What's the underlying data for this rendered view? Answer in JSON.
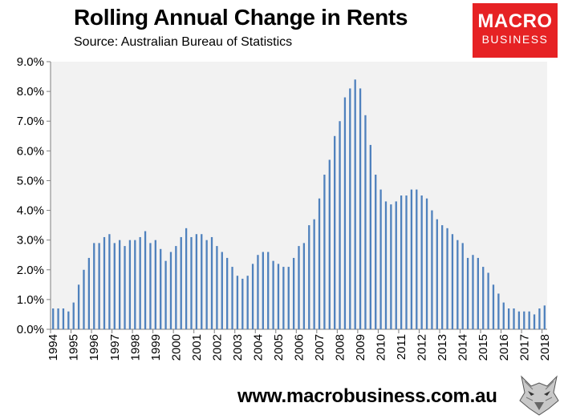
{
  "header": {
    "title": "Rolling Annual Change in Rents",
    "subtitle": "Source: Australian Bureau of Statistics"
  },
  "logo": {
    "line1": "MACRO",
    "line2": "BUSINESS"
  },
  "footer": {
    "url": "www.macrobusiness.com.au"
  },
  "colors": {
    "bar": "#4f81bd",
    "plot_bg": "#f2f2f2",
    "logo_bg": "#e62224"
  },
  "chart_data": {
    "type": "bar",
    "title": "Rolling Annual Change in Rents",
    "subtitle": "Source: Australian Bureau of Statistics",
    "xlabel": "",
    "ylabel": "",
    "ylim": [
      0,
      9.0
    ],
    "y_ticks": [
      "0.0%",
      "1.0%",
      "2.0%",
      "3.0%",
      "4.0%",
      "5.0%",
      "6.0%",
      "7.0%",
      "8.0%",
      "9.0%"
    ],
    "x_tick_labels": [
      "1994",
      "1995",
      "1996",
      "1997",
      "1998",
      "1999",
      "2000",
      "2001",
      "2002",
      "2003",
      "2004",
      "2005",
      "2006",
      "2007",
      "2008",
      "2009",
      "2010",
      "2011",
      "2012",
      "2013",
      "2014",
      "2015",
      "2016",
      "2017",
      "2018"
    ],
    "grid": false,
    "frequency": "quarterly",
    "start": "1994",
    "values": [
      0.7,
      0.7,
      0.7,
      0.6,
      0.9,
      1.5,
      2.0,
      2.4,
      2.9,
      2.9,
      3.1,
      3.2,
      2.9,
      3.0,
      2.8,
      3.0,
      3.0,
      3.1,
      3.3,
      2.9,
      3.0,
      2.7,
      2.3,
      2.6,
      2.8,
      3.1,
      3.4,
      3.1,
      3.2,
      3.2,
      3.0,
      3.1,
      2.8,
      2.6,
      2.4,
      2.1,
      1.8,
      1.7,
      1.8,
      2.2,
      2.5,
      2.6,
      2.6,
      2.3,
      2.2,
      2.1,
      2.1,
      2.4,
      2.8,
      2.9,
      3.5,
      3.7,
      4.4,
      5.2,
      5.7,
      6.5,
      7.0,
      7.8,
      8.1,
      8.4,
      8.1,
      7.2,
      6.2,
      5.2,
      4.7,
      4.3,
      4.2,
      4.3,
      4.5,
      4.5,
      4.7,
      4.7,
      4.5,
      4.4,
      4.0,
      3.7,
      3.5,
      3.4,
      3.2,
      3.0,
      2.9,
      2.4,
      2.5,
      2.4,
      2.1,
      1.9,
      1.5,
      1.2,
      0.9,
      0.7,
      0.7,
      0.6,
      0.6,
      0.6,
      0.5,
      0.7,
      0.8
    ]
  }
}
